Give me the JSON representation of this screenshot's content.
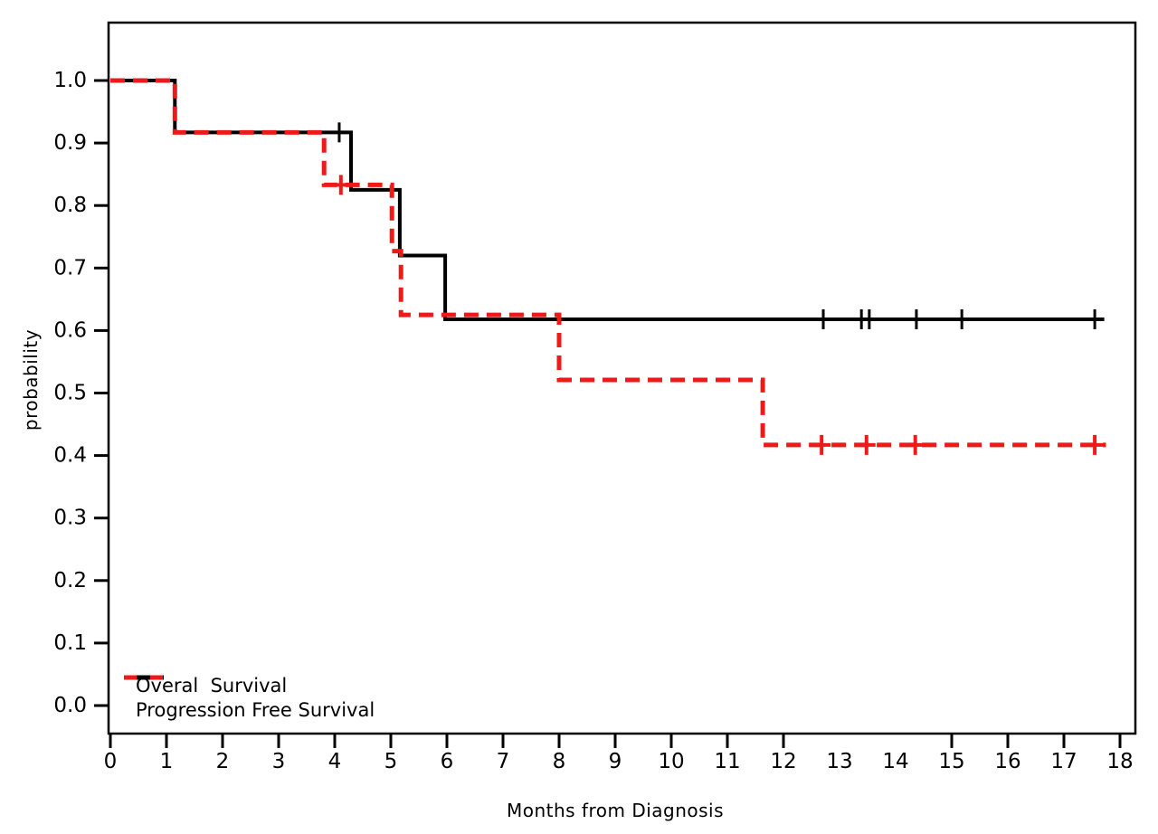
{
  "chart_data": {
    "type": "line",
    "subtype": "kaplan_meier_step",
    "title": "",
    "xlabel": "Months from Diagnosis",
    "ylabel": "probability",
    "xlim": [
      0,
      18
    ],
    "ylim": [
      0.0,
      1.0
    ],
    "grid": false,
    "background_color": "#ffffff",
    "axis_color": "#000000",
    "legend_position": "bottom-left",
    "xticks": [
      {
        "label": "0",
        "value": 0,
        "mark": true
      },
      {
        "label": "1",
        "value": 1,
        "mark": true
      },
      {
        "label": "2",
        "value": 2,
        "mark": true
      },
      {
        "label": "3",
        "value": 3,
        "mark": true
      },
      {
        "label": "4",
        "value": 4,
        "mark": true
      },
      {
        "label": "5",
        "value": 5,
        "mark": true
      },
      {
        "label": "6",
        "value": 6,
        "mark": true
      },
      {
        "label": "7",
        "value": 7,
        "mark": true
      },
      {
        "label": "8",
        "value": 8,
        "mark": true
      },
      {
        "label": "9",
        "value": 9,
        "mark": true
      },
      {
        "label": "10",
        "value": 10,
        "mark": true
      },
      {
        "label": "11",
        "value": 11,
        "mark": true
      },
      {
        "label": "12",
        "value": 12,
        "mark": true
      },
      {
        "label": "13",
        "value": 13,
        "mark": false
      },
      {
        "label": "14",
        "value": 14,
        "mark": false
      },
      {
        "label": "15",
        "value": 15,
        "mark": true
      },
      {
        "label": "16",
        "value": 16,
        "mark": true
      },
      {
        "label": "17",
        "value": 17,
        "mark": true
      },
      {
        "label": "18",
        "value": 18,
        "mark": true
      }
    ],
    "yticks": [
      {
        "label": "1.0",
        "value": 1.0
      },
      {
        "label": "0.9",
        "value": 0.9
      },
      {
        "label": "0.8",
        "value": 0.8
      },
      {
        "label": "0.7",
        "value": 0.7
      },
      {
        "label": "0.6",
        "value": 0.6
      },
      {
        "label": "0.5",
        "value": 0.5
      },
      {
        "label": "0.4",
        "value": 0.4
      },
      {
        "label": "0.3",
        "value": 0.3
      },
      {
        "label": "0.2",
        "value": 0.2
      },
      {
        "label": "0.1",
        "value": 0.1
      },
      {
        "label": "0.0",
        "value": 0.0
      }
    ],
    "series": [
      {
        "name": "Overal  Survival",
        "color": "#000000",
        "line_style": "solid",
        "line_width": 4,
        "steps_months_probability": [
          [
            0,
            1.0
          ],
          [
            1.15,
            1.0
          ],
          [
            1.15,
            0.917
          ],
          [
            4.29,
            0.917
          ],
          [
            4.29,
            0.825
          ],
          [
            5.16,
            0.825
          ],
          [
            5.16,
            0.72
          ],
          [
            5.97,
            0.72
          ],
          [
            5.97,
            0.618
          ],
          [
            17.72,
            0.618
          ]
        ],
        "censor_marks_months_probability": [
          [
            4.08,
            0.917
          ],
          [
            12.71,
            0.618
          ],
          [
            13.39,
            0.618
          ],
          [
            13.53,
            0.618
          ],
          [
            14.37,
            0.618
          ],
          [
            15.18,
            0.618
          ],
          [
            17.55,
            0.618
          ]
        ]
      },
      {
        "name": "Progression Free Survival",
        "color": "#ee1a1a",
        "line_style": "dashed",
        "line_width": 5,
        "steps_months_probability": [
          [
            0,
            1.0
          ],
          [
            1.15,
            1.0
          ],
          [
            1.15,
            0.917
          ],
          [
            3.81,
            0.917
          ],
          [
            3.81,
            0.833
          ],
          [
            5.02,
            0.833
          ],
          [
            5.02,
            0.727
          ],
          [
            5.18,
            0.727
          ],
          [
            5.18,
            0.625
          ],
          [
            8.0,
            0.625
          ],
          [
            8.0,
            0.521
          ],
          [
            11.63,
            0.521
          ],
          [
            11.63,
            0.417
          ],
          [
            17.75,
            0.417
          ]
        ],
        "censor_marks_months_probability": [
          [
            4.11,
            0.833
          ],
          [
            12.68,
            0.417
          ],
          [
            13.48,
            0.417
          ],
          [
            14.35,
            0.417
          ],
          [
            17.55,
            0.417
          ]
        ]
      }
    ]
  }
}
